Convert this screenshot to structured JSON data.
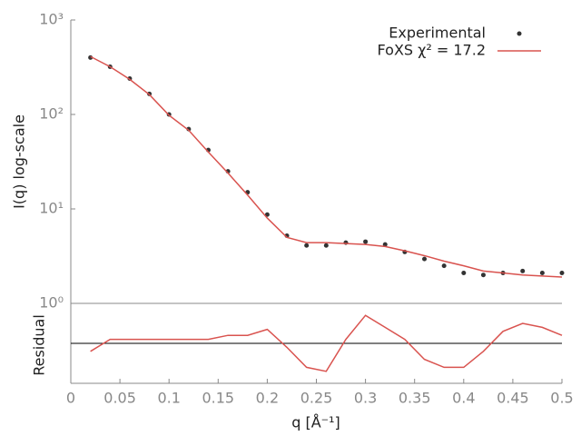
{
  "chart_data": [
    {
      "type": "line",
      "yscale": "log",
      "ylabel": "I(q) log-scale",
      "legend": "upper right",
      "x": [
        0.02,
        0.04,
        0.06,
        0.08,
        0.1,
        0.12,
        0.14,
        0.16,
        0.18,
        0.2,
        0.22,
        0.24,
        0.26,
        0.28,
        0.3,
        0.32,
        0.34,
        0.36,
        0.38,
        0.4,
        0.42,
        0.44,
        0.46,
        0.48,
        0.5
      ],
      "xlim": [
        0,
        0.5
      ],
      "ylim": [
        1,
        1000
      ],
      "yticks": [
        {
          "value": 1,
          "label": "10⁰"
        },
        {
          "value": 10,
          "label": "10¹"
        },
        {
          "value": 100,
          "label": "10²"
        },
        {
          "value": 1000,
          "label": "10³"
        }
      ],
      "series": [
        {
          "name": "Experimental",
          "color": "#333333",
          "mode": "markers",
          "values": [
            400,
            320,
            240,
            165,
            100,
            70,
            42,
            25,
            15,
            8.7,
            5.2,
            4.1,
            4.1,
            4.4,
            4.5,
            4.2,
            3.5,
            2.95,
            2.5,
            2.1,
            2.0,
            2.1,
            2.2,
            2.1,
            2.1
          ]
        },
        {
          "name": "FoXS χ² = 17.2",
          "color": "#d9534f",
          "mode": "lines",
          "values": [
            410,
            320,
            235,
            162,
            98,
            68,
            40,
            24,
            14,
            8.0,
            5.0,
            4.4,
            4.4,
            4.3,
            4.2,
            4.0,
            3.6,
            3.2,
            2.8,
            2.5,
            2.2,
            2.1,
            2.0,
            1.95,
            1.9
          ]
        }
      ]
    },
    {
      "type": "line",
      "ylabel": "Residual",
      "xlabel": "q [Å⁻¹]",
      "x": [
        0.02,
        0.04,
        0.06,
        0.08,
        0.1,
        0.12,
        0.14,
        0.16,
        0.18,
        0.2,
        0.22,
        0.24,
        0.26,
        0.28,
        0.3,
        0.32,
        0.34,
        0.36,
        0.38,
        0.4,
        0.42,
        0.44,
        0.46,
        0.48,
        0.5
      ],
      "xlim": [
        0,
        0.5
      ],
      "xticks": [
        0,
        0.05,
        0.1,
        0.15,
        0.2,
        0.25,
        0.3,
        0.35,
        0.4,
        0.45,
        0.5
      ],
      "ylim": [
        -1,
        1
      ],
      "series": [
        {
          "color": "#d9534f",
          "mode": "lines",
          "values": [
            -0.2,
            0.1,
            0.1,
            0.1,
            0.1,
            0.1,
            0.1,
            0.2,
            0.2,
            0.35,
            -0.1,
            -0.6,
            -0.7,
            0.1,
            0.7,
            0.4,
            0.1,
            -0.4,
            -0.6,
            -0.6,
            -0.2,
            0.3,
            0.5,
            0.4,
            0.2
          ]
        }
      ]
    }
  ]
}
